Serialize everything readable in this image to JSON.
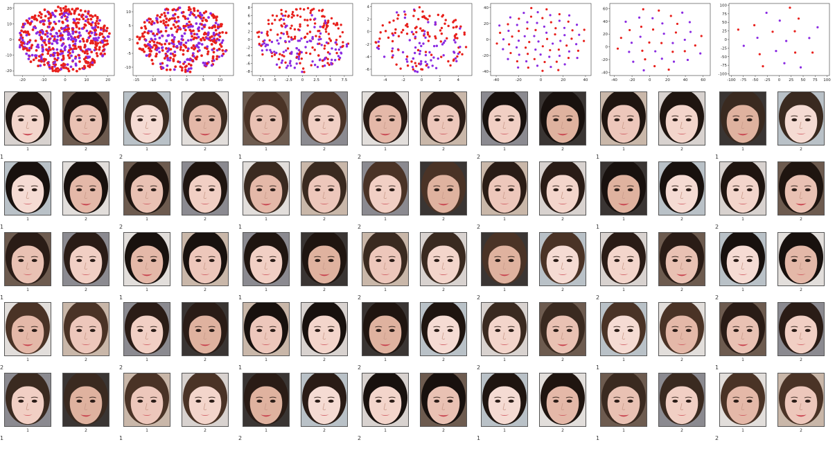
{
  "face_tiles": [
    "1",
    "2"
  ],
  "chart_data": [
    {
      "type": "scatter",
      "xticks": [
        -20,
        -10,
        0,
        10,
        20
      ],
      "yticks": [
        -20,
        -10,
        0,
        10,
        20
      ],
      "xlim": [
        -24,
        23
      ],
      "ylim": [
        -23,
        23
      ],
      "shape": "disk",
      "n_points": 560,
      "series_colors": [
        "#e8201c",
        "#8a2be2"
      ],
      "row_labels": [
        "1",
        "1",
        "1",
        "2",
        "1"
      ]
    },
    {
      "type": "scatter",
      "xticks": [
        -15,
        -10,
        -5,
        0,
        5,
        10
      ],
      "yticks": [
        -10,
        -5,
        0,
        5,
        10
      ],
      "xlim": [
        -16,
        14
      ],
      "ylim": [
        -13,
        13
      ],
      "shape": "disk",
      "n_points": 420,
      "series_colors": [
        "#e8201c",
        "#8a2be2"
      ],
      "row_labels": [
        "2",
        "2",
        "1",
        "2",
        "1"
      ]
    },
    {
      "type": "scatter",
      "xticks": [
        -7.5,
        -5.0,
        -2.5,
        0.0,
        2.5,
        5.0,
        7.5
      ],
      "yticks": [
        -8,
        -6,
        -4,
        -2,
        0,
        2,
        4,
        6,
        8
      ],
      "xlim": [
        -9,
        9
      ],
      "ylim": [
        -9,
        9
      ],
      "shape": "disk",
      "n_points": 260,
      "series_colors": [
        "#e8201c",
        "#8a2be2"
      ],
      "row_labels": [
        "1",
        "1",
        "1",
        "1",
        "2"
      ]
    },
    {
      "type": "scatter",
      "xticks": [
        -4,
        -2,
        0,
        2,
        4
      ],
      "yticks": [
        -6,
        -4,
        -2,
        0,
        2,
        4
      ],
      "xlim": [
        -5.5,
        5.5
      ],
      "ylim": [
        -7,
        4.5
      ],
      "shape": "disk",
      "n_points": 170,
      "series_colors": [
        "#e8201c",
        "#8a2be2"
      ],
      "row_labels": [
        "2",
        "2",
        "2",
        "2",
        "2"
      ]
    },
    {
      "type": "scatter",
      "xticks": [
        -40,
        -20,
        0,
        20,
        40
      ],
      "yticks": [
        -40,
        -20,
        0,
        20,
        40
      ],
      "xlim": [
        -45,
        45
      ],
      "ylim": [
        -45,
        45
      ],
      "shape": "lattice",
      "n_points": 80,
      "series_colors": [
        "#e8201c",
        "#8a2be2"
      ],
      "row_labels": [
        "2",
        "2",
        "2",
        "2",
        "1"
      ]
    },
    {
      "type": "scatter",
      "xticks": [
        -40,
        -20,
        0,
        20,
        40,
        60
      ],
      "yticks": [
        -40,
        -20,
        0,
        20,
        40,
        60
      ],
      "xlim": [
        -45,
        68
      ],
      "ylim": [
        -45,
        68
      ],
      "shape": "lattice",
      "n_points": 40,
      "series_colors": [
        "#e8201c",
        "#8a2be2"
      ],
      "row_labels": [
        "1",
        "1",
        "2",
        "1",
        "1"
      ]
    },
    {
      "type": "scatter",
      "xticks": [
        -100,
        -75,
        -50,
        -25,
        0,
        25,
        50,
        75,
        100
      ],
      "yticks": [
        -100,
        -75,
        -50,
        -25,
        0,
        25,
        50,
        75,
        100
      ],
      "xlim": [
        -105,
        105
      ],
      "ylim": [
        -105,
        105
      ],
      "shape": "lattice",
      "n_points": 20,
      "series_colors": [
        "#e8201c",
        "#8a2be2"
      ],
      "row_labels": [
        "1",
        "2",
        "2",
        "1",
        "2"
      ]
    }
  ]
}
